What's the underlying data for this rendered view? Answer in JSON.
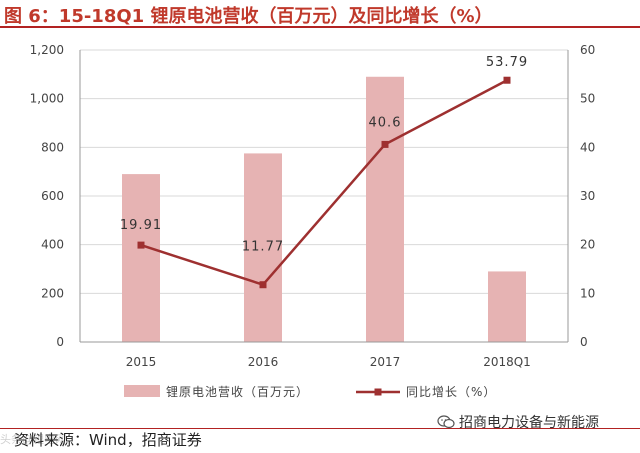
{
  "title": "图 6：15-18Q1 锂原电池营收（百万元）及同比增长（%）",
  "source": "资料来源：Wind，招商证券",
  "watermark": "头条@锂电网",
  "brand": "招商电力设备与新能源",
  "colors": {
    "bar": "#e6b3b3",
    "line": "#9e3030",
    "title": "#c0392b",
    "axis": "#999999"
  },
  "chart_data": {
    "type": "bar",
    "categories": [
      "2015",
      "2016",
      "2017",
      "2018Q1"
    ],
    "series": [
      {
        "name": "锂原电池营收（百万元）",
        "type": "bar",
        "axis": "left",
        "values": [
          690,
          775,
          1090,
          290
        ]
      },
      {
        "name": "同比增长（%）",
        "type": "line",
        "axis": "right",
        "values": [
          19.91,
          11.77,
          40.6,
          53.79
        ],
        "labels": [
          "19.91",
          "11.77",
          "40.6",
          "53.79"
        ]
      }
    ],
    "y_left": {
      "ticks": [
        "0",
        "200",
        "400",
        "600",
        "800",
        "1,000",
        "1,200"
      ],
      "range": [
        0,
        1200
      ]
    },
    "y_right": {
      "ticks": [
        "0",
        "10",
        "20",
        "30",
        "40",
        "50",
        "60"
      ],
      "range": [
        0,
        60
      ]
    },
    "grid": true,
    "legend_position": "bottom"
  }
}
